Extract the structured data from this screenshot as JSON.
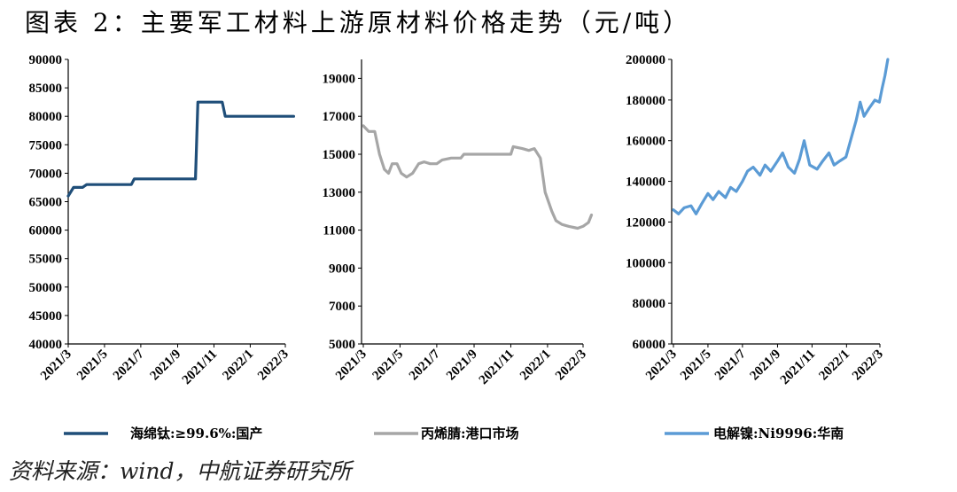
{
  "title": "图表 2：主要军工材料上游原材料价格走势（元/吨）",
  "source": "资料来源：wind，中航证券研究所",
  "chart_data": [
    {
      "type": "line",
      "ylim": [
        40000,
        90000
      ],
      "yticks": [
        40000,
        45000,
        50000,
        55000,
        60000,
        65000,
        70000,
        75000,
        80000,
        85000,
        90000
      ],
      "xlim": [
        "2021-03",
        "2022-03"
      ],
      "xticks": [
        "2021/3",
        "2021/5",
        "2021/7",
        "2021/9",
        "2021/11",
        "2022/1",
        "2022/3"
      ],
      "color": "#1f4e79",
      "series": [
        {
          "name": "海绵钛:≥99.6%:国产",
          "points": [
            [
              "2021-03-01",
              66000
            ],
            [
              "2021-03-10",
              67500
            ],
            [
              "2021-03-25",
              67500
            ],
            [
              "2021-04-01",
              68000
            ],
            [
              "2021-06-15",
              68000
            ],
            [
              "2021-06-20",
              69000
            ],
            [
              "2021-10-01",
              69000
            ],
            [
              "2021-10-05",
              82500
            ],
            [
              "2021-11-15",
              82500
            ],
            [
              "2021-11-20",
              80000
            ],
            [
              "2022-03-15",
              80000
            ]
          ]
        }
      ]
    },
    {
      "type": "line",
      "ylim": [
        5000,
        20000
      ],
      "yticks": [
        5000,
        7000,
        9000,
        11000,
        13000,
        15000,
        17000,
        19000
      ],
      "xlim": [
        "2021-03",
        "2022-03"
      ],
      "xticks": [
        "2021/3",
        "2021/5",
        "2021/7",
        "2021/9",
        "2021/11",
        "2022/1",
        "2022/3"
      ],
      "color": "#a6a6a6",
      "series": [
        {
          "name": "丙烯腈:港口市场",
          "points": [
            [
              "2021-03-01",
              16500
            ],
            [
              "2021-03-10",
              16200
            ],
            [
              "2021-03-20",
              16200
            ],
            [
              "2021-03-28",
              15000
            ],
            [
              "2021-04-05",
              14200
            ],
            [
              "2021-04-12",
              14000
            ],
            [
              "2021-04-18",
              14500
            ],
            [
              "2021-04-26",
              14500
            ],
            [
              "2021-05-03",
              14000
            ],
            [
              "2021-05-12",
              13800
            ],
            [
              "2021-05-22",
              14000
            ],
            [
              "2021-06-01",
              14500
            ],
            [
              "2021-06-10",
              14600
            ],
            [
              "2021-06-20",
              14500
            ],
            [
              "2021-07-01",
              14500
            ],
            [
              "2021-07-10",
              14700
            ],
            [
              "2021-07-25",
              14800
            ],
            [
              "2021-08-10",
              14800
            ],
            [
              "2021-08-15",
              15000
            ],
            [
              "2021-09-01",
              15000
            ],
            [
              "2021-09-20",
              15000
            ],
            [
              "2021-10-15",
              15000
            ],
            [
              "2021-11-01",
              15000
            ],
            [
              "2021-11-05",
              15400
            ],
            [
              "2021-11-20",
              15300
            ],
            [
              "2021-12-01",
              15200
            ],
            [
              "2021-12-10",
              15300
            ],
            [
              "2021-12-20",
              14800
            ],
            [
              "2021-12-28",
              13000
            ],
            [
              "2022-01-08",
              12000
            ],
            [
              "2022-01-15",
              11500
            ],
            [
              "2022-01-25",
              11300
            ],
            [
              "2022-02-05",
              11200
            ],
            [
              "2022-02-20",
              11100
            ],
            [
              "2022-03-01",
              11200
            ],
            [
              "2022-03-10",
              11400
            ],
            [
              "2022-03-15",
              11800
            ]
          ]
        }
      ]
    },
    {
      "type": "line",
      "ylim": [
        60000,
        200000
      ],
      "yticks": [
        60000,
        80000,
        100000,
        120000,
        140000,
        160000,
        180000,
        200000
      ],
      "xlim": [
        "2021-03",
        "2022-03"
      ],
      "xticks": [
        "2021/3",
        "2021/5",
        "2021/7",
        "2021/9",
        "2021/11",
        "2022/1",
        "2022/3"
      ],
      "color": "#5b9bd5",
      "series": [
        {
          "name": "电解镍:Ni9996:华南",
          "points": [
            [
              "2021-03-01",
              126000
            ],
            [
              "2021-03-10",
              124000
            ],
            [
              "2021-03-20",
              127000
            ],
            [
              "2021-04-01",
              128000
            ],
            [
              "2021-04-10",
              124000
            ],
            [
              "2021-04-20",
              129000
            ],
            [
              "2021-05-01",
              134000
            ],
            [
              "2021-05-10",
              131000
            ],
            [
              "2021-05-20",
              135000
            ],
            [
              "2021-06-01",
              132000
            ],
            [
              "2021-06-10",
              137000
            ],
            [
              "2021-06-20",
              135000
            ],
            [
              "2021-07-01",
              140000
            ],
            [
              "2021-07-10",
              145000
            ],
            [
              "2021-07-20",
              147000
            ],
            [
              "2021-08-01",
              143000
            ],
            [
              "2021-08-10",
              148000
            ],
            [
              "2021-08-20",
              145000
            ],
            [
              "2021-09-01",
              150000
            ],
            [
              "2021-09-10",
              154000
            ],
            [
              "2021-09-20",
              147000
            ],
            [
              "2021-10-01",
              144000
            ],
            [
              "2021-10-10",
              151000
            ],
            [
              "2021-10-18",
              160000
            ],
            [
              "2021-10-28",
              148000
            ],
            [
              "2021-11-10",
              146000
            ],
            [
              "2021-11-20",
              150000
            ],
            [
              "2021-12-01",
              154000
            ],
            [
              "2021-12-10",
              148000
            ],
            [
              "2021-12-20",
              150000
            ],
            [
              "2021-12-31",
              152000
            ],
            [
              "2022-01-10",
              162000
            ],
            [
              "2022-01-18",
              170000
            ],
            [
              "2022-01-25",
              179000
            ],
            [
              "2022-02-01",
              172000
            ],
            [
              "2022-02-10",
              176000
            ],
            [
              "2022-02-20",
              180000
            ],
            [
              "2022-02-28",
              179000
            ],
            [
              "2022-03-05",
              186000
            ],
            [
              "2022-03-10",
              192000
            ],
            [
              "2022-03-15",
              200000
            ]
          ]
        }
      ]
    }
  ]
}
